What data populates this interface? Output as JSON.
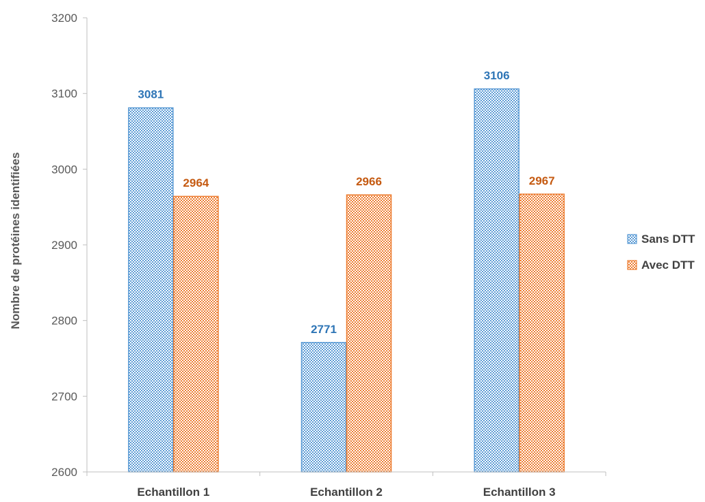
{
  "chart_data": {
    "type": "bar",
    "title": "",
    "xlabel": "",
    "ylabel": "Nombre de protéines identifiées",
    "categories": [
      "Echantillon 1",
      "Echantillon 2",
      "Echantillon 3"
    ],
    "series": [
      {
        "name": "Sans DTT",
        "values": [
          3081,
          2771,
          3106
        ],
        "color": "#5b9bd5",
        "label_color": "#2e75b6"
      },
      {
        "name": "Avec DTT",
        "values": [
          2964,
          2966,
          2967
        ],
        "color": "#ed7d31",
        "label_color": "#c55a11"
      }
    ],
    "ylim": [
      2600,
      3200
    ],
    "yticks": [
      2600,
      2700,
      2800,
      2900,
      3000,
      3100,
      3200
    ],
    "fill_pattern": "checkerboard",
    "grid": false,
    "legend": "right"
  }
}
